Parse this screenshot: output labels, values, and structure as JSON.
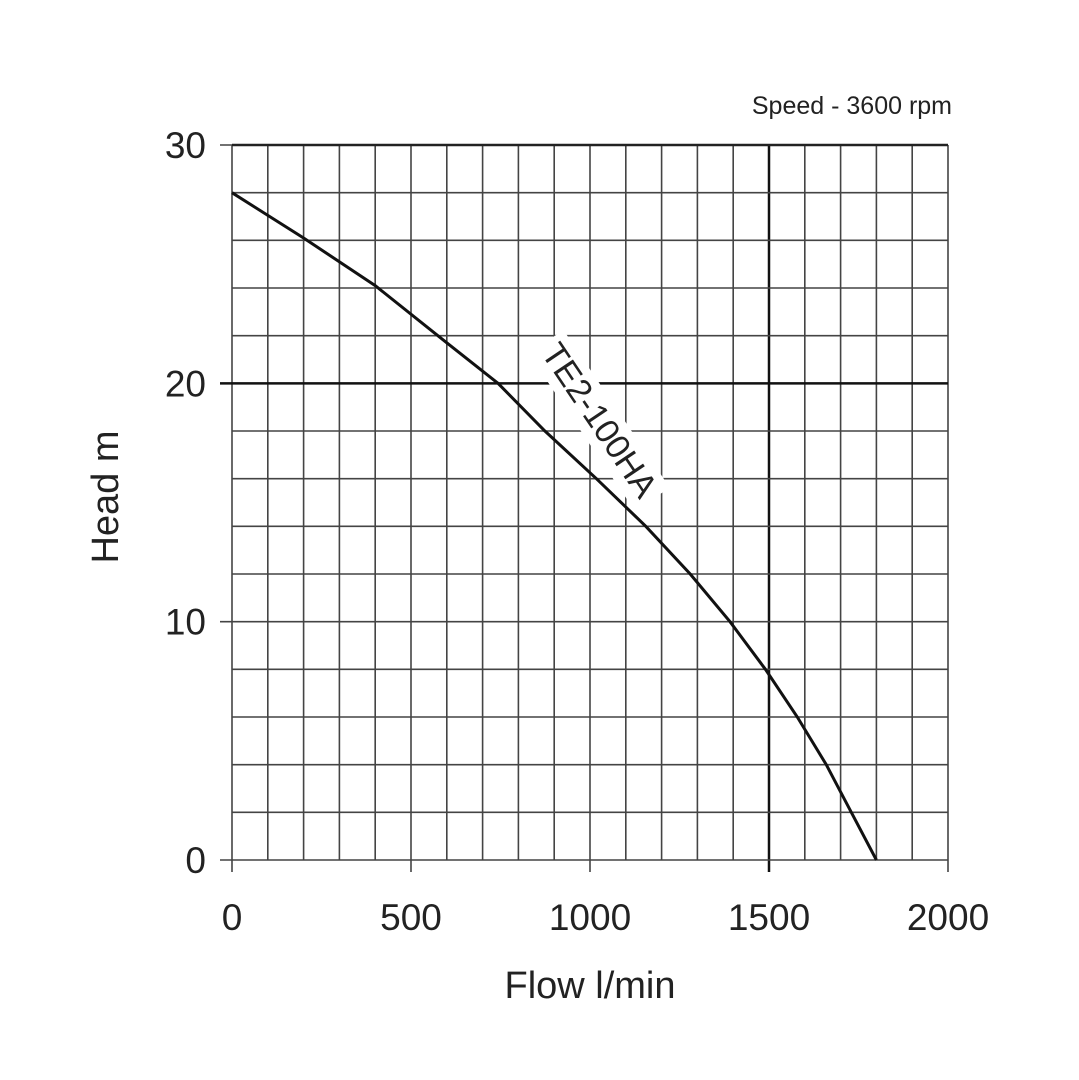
{
  "chart_data": {
    "type": "line",
    "title": "Speed - 3600 rpm",
    "xlabel": "Flow l/min",
    "ylabel": "Head m",
    "xlim": [
      0,
      2000
    ],
    "ylim": [
      0,
      30
    ],
    "x_ticks": [
      "0",
      "500",
      "1000",
      "1500",
      "2000"
    ],
    "y_ticks": [
      "0",
      "10",
      "20",
      "30"
    ],
    "x_tick_values": [
      0,
      500,
      1000,
      1500,
      2000
    ],
    "y_tick_values": [
      0,
      10,
      20,
      30
    ],
    "grid": true,
    "grid_minor_x": 100,
    "grid_minor_y": 2,
    "grid_major_lines": {
      "x": 1500,
      "y": 20
    },
    "series": [
      {
        "name": "TE2-100HA",
        "x": [
          0,
          200,
          400,
          600,
          743,
          874,
          1018,
          1156,
          1280,
          1391,
          1490,
          1579,
          1660,
          1730,
          1800
        ],
        "y": [
          28,
          26.1,
          24.1,
          21.7,
          20,
          18,
          16,
          14,
          12,
          10,
          8,
          6,
          4,
          2,
          0
        ]
      }
    ],
    "line_color": "#111111"
  }
}
